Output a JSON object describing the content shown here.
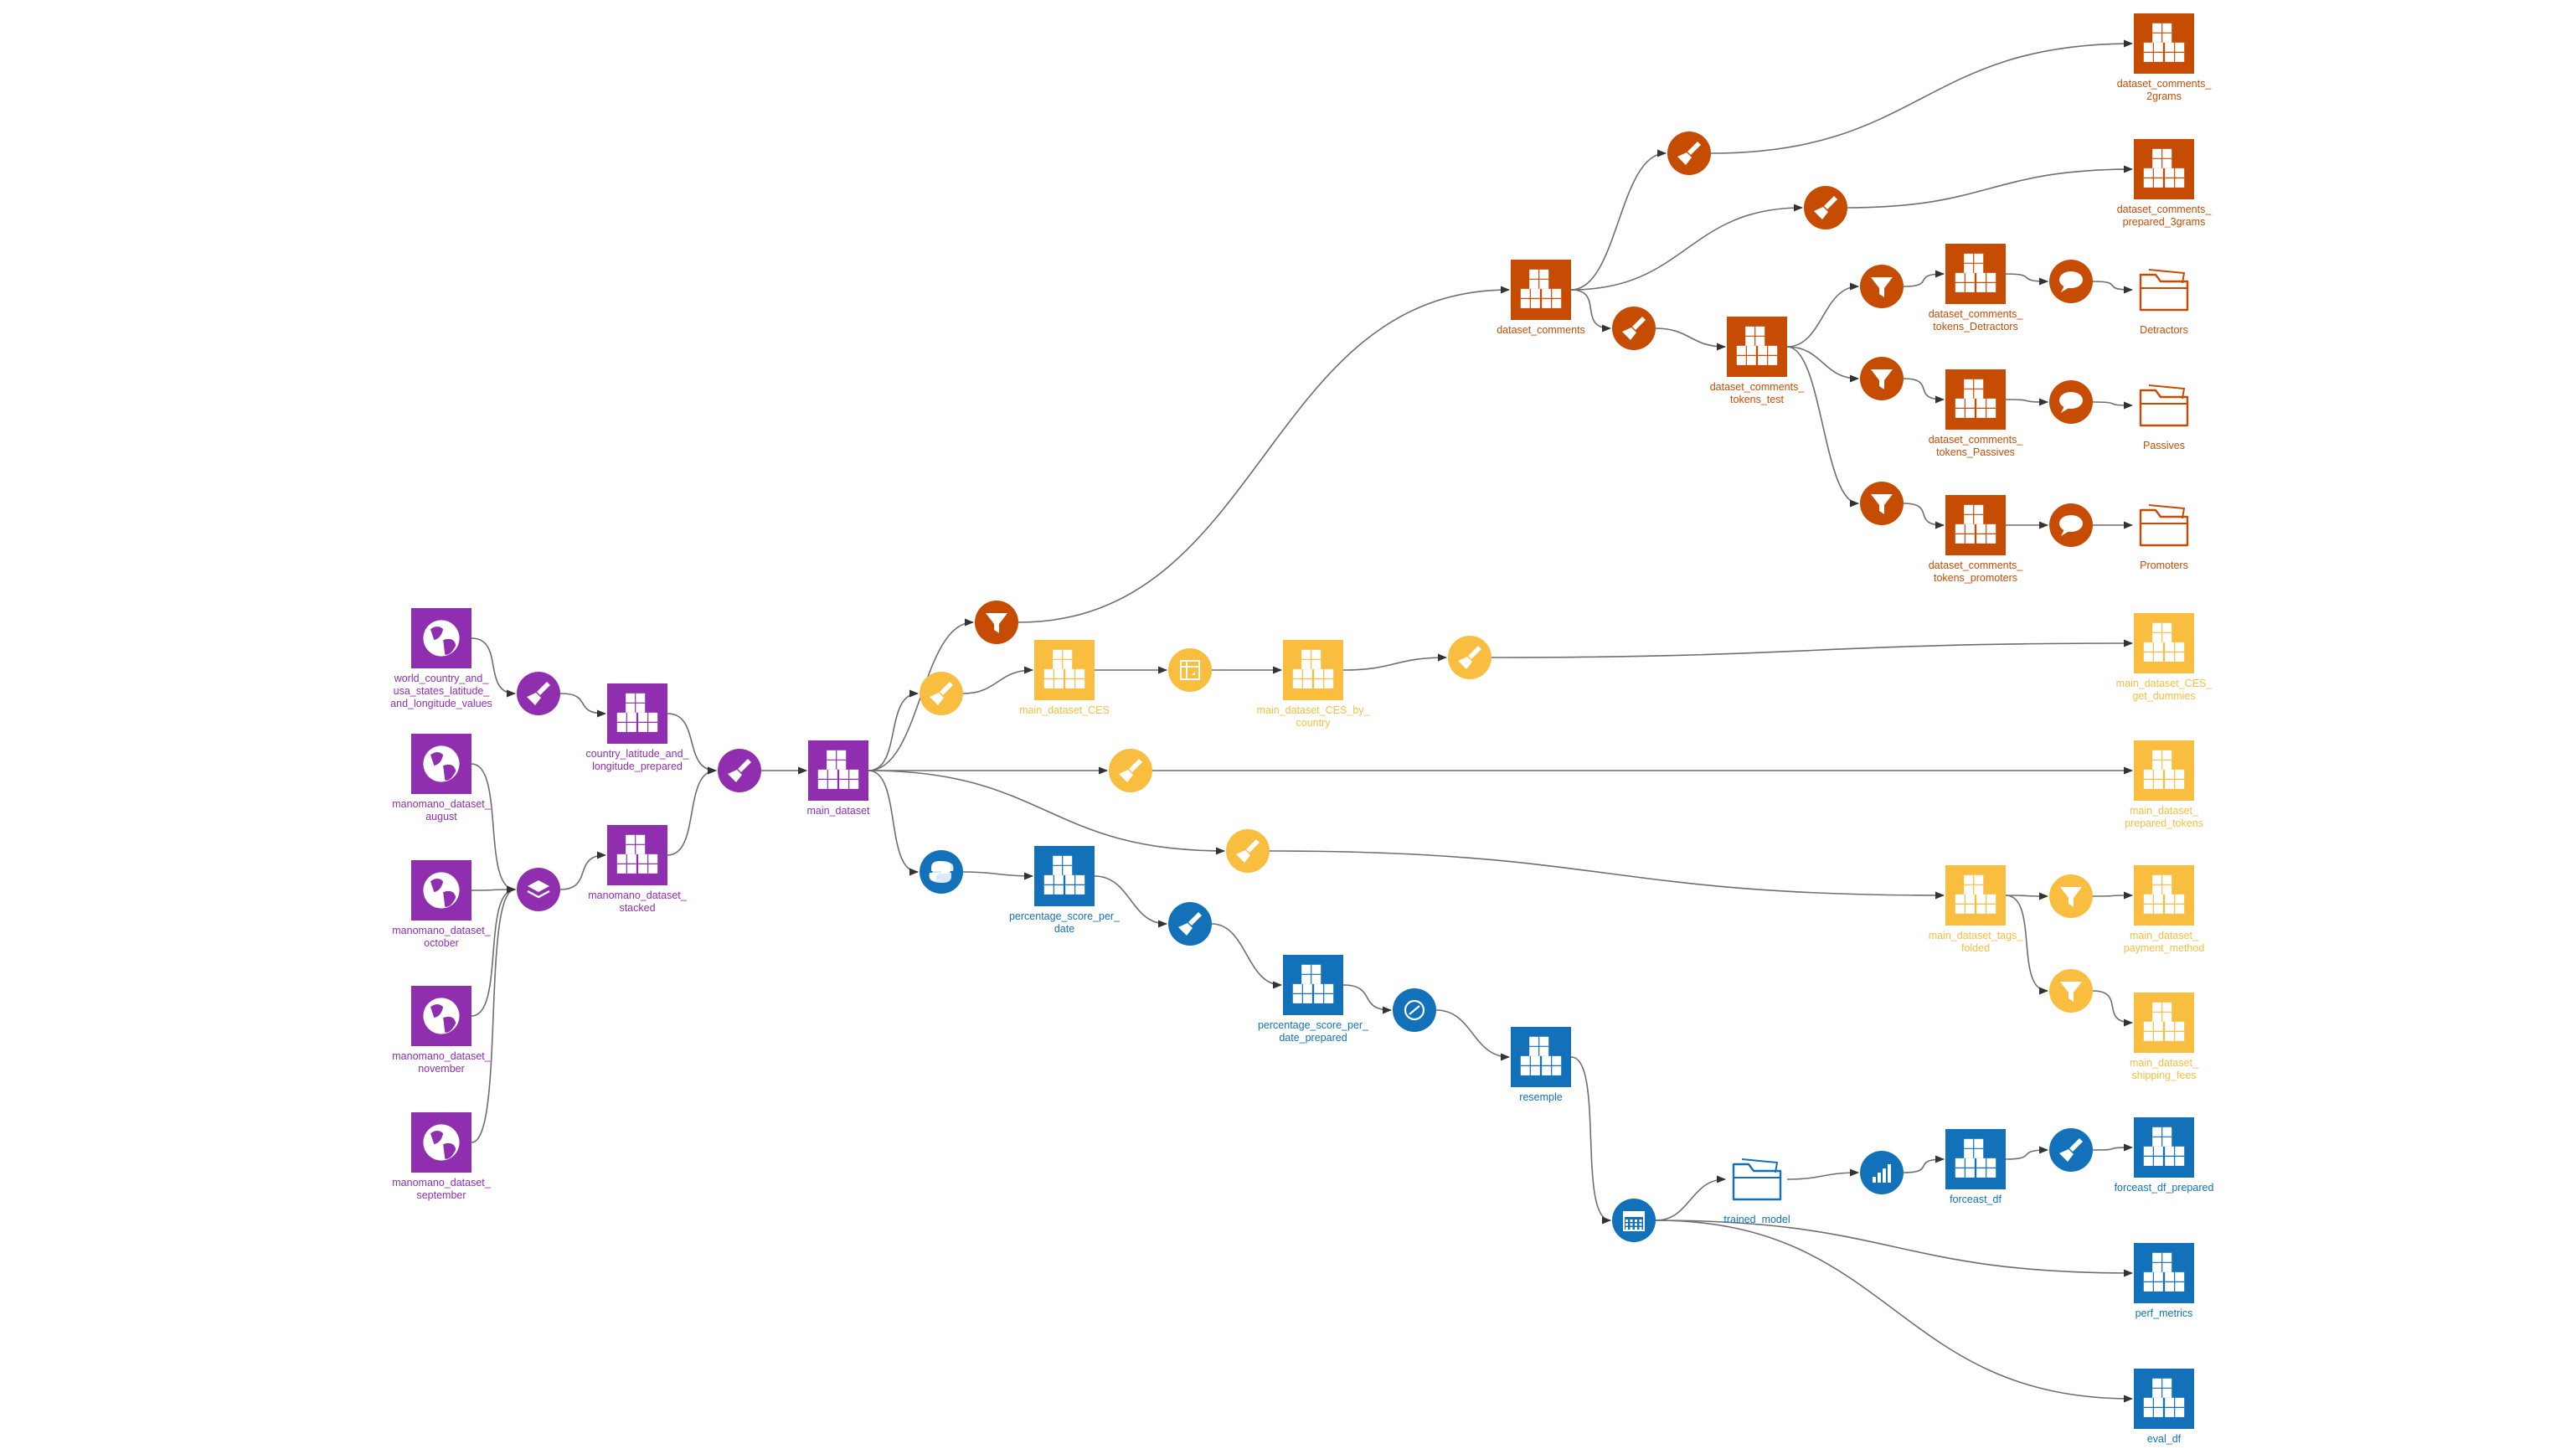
{
  "colors": {
    "purple": "#8F2FAF",
    "orange": "#C64C04",
    "yellow": "#F9BE40",
    "blue": "#1271B9",
    "edge": "#6E6E6E"
  },
  "nodes": [
    {
      "id": "world",
      "kind": "dataset",
      "icon": "globe-icon",
      "color": "purple",
      "label": [
        "world_country_and_",
        "usa_states_latitude_",
        "and_longitude_values"
      ]
    },
    {
      "id": "aug",
      "kind": "dataset",
      "icon": "globe-icon",
      "color": "purple",
      "label": [
        "manomano_dataset_",
        "august"
      ]
    },
    {
      "id": "oct",
      "kind": "dataset",
      "icon": "globe-icon",
      "color": "purple",
      "label": [
        "manomano_dataset_",
        "october"
      ]
    },
    {
      "id": "nov",
      "kind": "dataset",
      "icon": "globe-icon",
      "color": "purple",
      "label": [
        "manomano_dataset_",
        "november"
      ]
    },
    {
      "id": "sep",
      "kind": "dataset",
      "icon": "globe-icon",
      "color": "purple",
      "label": [
        "manomano_dataset_",
        "september"
      ]
    },
    {
      "id": "r_prep1",
      "kind": "recipe",
      "icon": "brush-icon",
      "color": "purple",
      "label": []
    },
    {
      "id": "r_stack",
      "kind": "recipe",
      "icon": "stack-icon",
      "color": "purple",
      "label": []
    },
    {
      "id": "clat",
      "kind": "dataset",
      "icon": "cubes-icon",
      "color": "purple",
      "label": [
        "country_latitude_and_",
        "longitude_prepared"
      ]
    },
    {
      "id": "stacked",
      "kind": "dataset",
      "icon": "cubes-icon",
      "color": "purple",
      "label": [
        "manomano_dataset_",
        "stacked"
      ]
    },
    {
      "id": "r_prep2",
      "kind": "recipe",
      "icon": "brush-icon",
      "color": "purple",
      "label": []
    },
    {
      "id": "main",
      "kind": "dataset",
      "icon": "cubes-icon",
      "color": "purple",
      "label": [
        "main_dataset"
      ]
    },
    {
      "id": "r_filter_top",
      "kind": "recipe",
      "icon": "filter-icon",
      "color": "orange",
      "label": []
    },
    {
      "id": "comments",
      "kind": "dataset",
      "icon": "cubes-icon",
      "color": "orange",
      "label": [
        "dataset_comments"
      ]
    },
    {
      "id": "r_prep_2g",
      "kind": "recipe",
      "icon": "brush-icon",
      "color": "orange",
      "label": []
    },
    {
      "id": "r_prep_3g",
      "kind": "recipe",
      "icon": "brush-icon",
      "color": "orange",
      "label": []
    },
    {
      "id": "r_prep_tok",
      "kind": "recipe",
      "icon": "brush-icon",
      "color": "orange",
      "label": []
    },
    {
      "id": "c2g",
      "kind": "dataset",
      "icon": "cubes-icon",
      "color": "orange",
      "label": [
        "dataset_comments_",
        "2grams"
      ]
    },
    {
      "id": "c3g",
      "kind": "dataset",
      "icon": "cubes-icon",
      "color": "orange",
      "label": [
        "dataset_comments_",
        "prepared_3grams"
      ]
    },
    {
      "id": "tokens_test",
      "kind": "dataset",
      "icon": "cubes-icon",
      "color": "orange",
      "label": [
        "dataset_comments_",
        "tokens_test"
      ]
    },
    {
      "id": "r_f_det",
      "kind": "recipe",
      "icon": "filter-icon",
      "color": "orange",
      "label": []
    },
    {
      "id": "r_f_pas",
      "kind": "recipe",
      "icon": "filter-icon",
      "color": "orange",
      "label": []
    },
    {
      "id": "r_f_pro",
      "kind": "recipe",
      "icon": "filter-icon",
      "color": "orange",
      "label": []
    },
    {
      "id": "tok_det",
      "kind": "dataset",
      "icon": "cubes-icon",
      "color": "orange",
      "label": [
        "dataset_comments_",
        "tokens_Detractors"
      ]
    },
    {
      "id": "tok_pas",
      "kind": "dataset",
      "icon": "cubes-icon",
      "color": "orange",
      "label": [
        "dataset_comments_",
        "tokens_Passives"
      ]
    },
    {
      "id": "tok_pro",
      "kind": "dataset",
      "icon": "cubes-icon",
      "color": "orange",
      "label": [
        "dataset_comments_",
        "tokens_promoters"
      ]
    },
    {
      "id": "r_s_det",
      "kind": "recipe",
      "icon": "speech-icon",
      "color": "orange",
      "label": []
    },
    {
      "id": "r_s_pas",
      "kind": "recipe",
      "icon": "speech-icon",
      "color": "orange",
      "label": []
    },
    {
      "id": "r_s_pro",
      "kind": "recipe",
      "icon": "speech-icon",
      "color": "orange",
      "label": []
    },
    {
      "id": "f_det",
      "kind": "folder",
      "icon": "folder-icon",
      "color": "orange",
      "label": [
        "Detractors"
      ]
    },
    {
      "id": "f_pas",
      "kind": "folder",
      "icon": "folder-icon",
      "color": "orange",
      "label": [
        "Passives"
      ]
    },
    {
      "id": "f_pro",
      "kind": "folder",
      "icon": "folder-icon",
      "color": "orange",
      "label": [
        "Promoters"
      ]
    },
    {
      "id": "r_prep_ces",
      "kind": "recipe",
      "icon": "brush-icon",
      "color": "yellow",
      "label": []
    },
    {
      "id": "ces",
      "kind": "dataset",
      "icon": "cubes-icon",
      "color": "yellow",
      "label": [
        "main_dataset_CES"
      ]
    },
    {
      "id": "r_pivot",
      "kind": "recipe",
      "icon": "pivot-icon",
      "color": "yellow",
      "label": []
    },
    {
      "id": "ces_country",
      "kind": "dataset",
      "icon": "cubes-icon",
      "color": "yellow",
      "label": [
        "main_dataset_CES_by_",
        "country"
      ]
    },
    {
      "id": "r_prep_dum",
      "kind": "recipe",
      "icon": "brush-icon",
      "color": "yellow",
      "label": []
    },
    {
      "id": "ces_dummies",
      "kind": "dataset",
      "icon": "cubes-icon",
      "color": "yellow",
      "label": [
        "main_dataset_CES_",
        "get_dummies"
      ]
    },
    {
      "id": "r_prep_tokens",
      "kind": "recipe",
      "icon": "brush-icon",
      "color": "yellow",
      "label": []
    },
    {
      "id": "prep_tokens",
      "kind": "dataset",
      "icon": "cubes-icon",
      "color": "yellow",
      "label": [
        "main_dataset_",
        "prepared_tokens"
      ]
    },
    {
      "id": "r_prep_tags",
      "kind": "recipe",
      "icon": "brush-icon",
      "color": "yellow",
      "label": []
    },
    {
      "id": "tags",
      "kind": "dataset",
      "icon": "cubes-icon",
      "color": "yellow",
      "label": [
        "main_dataset_tags_",
        "folded"
      ]
    },
    {
      "id": "r_f_pay",
      "kind": "recipe",
      "icon": "filter-icon",
      "color": "yellow",
      "label": []
    },
    {
      "id": "r_f_ship",
      "kind": "recipe",
      "icon": "filter-icon",
      "color": "yellow",
      "label": []
    },
    {
      "id": "payment",
      "kind": "dataset",
      "icon": "cubes-icon",
      "color": "yellow",
      "label": [
        "main_dataset_",
        "payment_method"
      ]
    },
    {
      "id": "shipping",
      "kind": "dataset",
      "icon": "cubes-icon",
      "color": "yellow",
      "label": [
        "main_dataset_",
        "shipping_fees"
      ]
    },
    {
      "id": "r_python",
      "kind": "recipe",
      "icon": "python-icon",
      "color": "blue",
      "label": []
    },
    {
      "id": "pct",
      "kind": "dataset",
      "icon": "cubes-icon",
      "color": "blue",
      "label": [
        "percentage_score_per_",
        "date"
      ]
    },
    {
      "id": "r_prep_pct",
      "kind": "recipe",
      "icon": "brush-icon",
      "color": "blue",
      "label": []
    },
    {
      "id": "pct_prep",
      "kind": "dataset",
      "icon": "cubes-icon",
      "color": "blue",
      "label": [
        "percentage_score_per_",
        "date_prepared"
      ]
    },
    {
      "id": "r_resample",
      "kind": "recipe",
      "icon": "resample-icon",
      "color": "blue",
      "label": []
    },
    {
      "id": "resemple",
      "kind": "dataset",
      "icon": "cubes-icon",
      "color": "blue",
      "label": [
        "resemple"
      ]
    },
    {
      "id": "r_forecast",
      "kind": "recipe",
      "icon": "calendar-icon",
      "color": "blue",
      "label": []
    },
    {
      "id": "model",
      "kind": "folder",
      "icon": "folder-icon",
      "color": "blue",
      "label": [
        "trained_model"
      ]
    },
    {
      "id": "r_predict",
      "kind": "recipe",
      "icon": "bars-icon",
      "color": "blue",
      "label": []
    },
    {
      "id": "forecast",
      "kind": "dataset",
      "icon": "cubes-icon",
      "color": "blue",
      "label": [
        "forceast_df"
      ]
    },
    {
      "id": "r_prep_fc",
      "kind": "recipe",
      "icon": "brush-icon",
      "color": "blue",
      "label": []
    },
    {
      "id": "forecast_prep",
      "kind": "dataset",
      "icon": "cubes-icon",
      "color": "blue",
      "label": [
        "forceast_df_prepared"
      ]
    },
    {
      "id": "perf",
      "kind": "dataset",
      "icon": "cubes-icon",
      "color": "blue",
      "label": [
        "perf_metrics"
      ]
    },
    {
      "id": "eval",
      "kind": "dataset",
      "icon": "cubes-icon",
      "color": "blue",
      "label": [
        "eval_df"
      ]
    }
  ],
  "edges": [
    [
      "world",
      "r_prep1"
    ],
    [
      "r_prep1",
      "clat"
    ],
    [
      "clat",
      "r_prep2"
    ],
    [
      "aug",
      "r_stack"
    ],
    [
      "oct",
      "r_stack"
    ],
    [
      "nov",
      "r_stack"
    ],
    [
      "sep",
      "r_stack"
    ],
    [
      "r_stack",
      "stacked"
    ],
    [
      "stacked",
      "r_prep2"
    ],
    [
      "r_prep2",
      "main"
    ],
    [
      "main",
      "r_filter_top"
    ],
    [
      "r_filter_top",
      "comments"
    ],
    [
      "comments",
      "r_prep_2g"
    ],
    [
      "r_prep_2g",
      "c2g"
    ],
    [
      "comments",
      "r_prep_3g"
    ],
    [
      "r_prep_3g",
      "c3g"
    ],
    [
      "comments",
      "r_prep_tok"
    ],
    [
      "r_prep_tok",
      "tokens_test"
    ],
    [
      "tokens_test",
      "r_f_det"
    ],
    [
      "tokens_test",
      "r_f_pas"
    ],
    [
      "tokens_test",
      "r_f_pro"
    ],
    [
      "r_f_det",
      "tok_det"
    ],
    [
      "r_f_pas",
      "tok_pas"
    ],
    [
      "r_f_pro",
      "tok_pro"
    ],
    [
      "tok_det",
      "r_s_det"
    ],
    [
      "tok_pas",
      "r_s_pas"
    ],
    [
      "tok_pro",
      "r_s_pro"
    ],
    [
      "r_s_det",
      "f_det"
    ],
    [
      "r_s_pas",
      "f_pas"
    ],
    [
      "r_s_pro",
      "f_pro"
    ],
    [
      "main",
      "r_prep_ces"
    ],
    [
      "r_prep_ces",
      "ces"
    ],
    [
      "ces",
      "r_pivot"
    ],
    [
      "r_pivot",
      "ces_country"
    ],
    [
      "ces_country",
      "r_prep_dum"
    ],
    [
      "r_prep_dum",
      "ces_dummies"
    ],
    [
      "main",
      "r_prep_tokens"
    ],
    [
      "r_prep_tokens",
      "prep_tokens"
    ],
    [
      "main",
      "r_prep_tags"
    ],
    [
      "r_prep_tags",
      "tags"
    ],
    [
      "tags",
      "r_f_pay"
    ],
    [
      "tags",
      "r_f_ship"
    ],
    [
      "r_f_pay",
      "payment"
    ],
    [
      "r_f_ship",
      "shipping"
    ],
    [
      "main",
      "r_python"
    ],
    [
      "r_python",
      "pct"
    ],
    [
      "pct",
      "r_prep_pct"
    ],
    [
      "r_prep_pct",
      "pct_prep"
    ],
    [
      "pct_prep",
      "r_resample"
    ],
    [
      "r_resample",
      "resemple"
    ],
    [
      "resemple",
      "r_forecast"
    ],
    [
      "r_forecast",
      "model"
    ],
    [
      "model",
      "r_predict"
    ],
    [
      "r_predict",
      "forecast"
    ],
    [
      "forecast",
      "r_prep_fc"
    ],
    [
      "r_prep_fc",
      "forecast_prep"
    ],
    [
      "r_forecast",
      "perf"
    ],
    [
      "r_forecast",
      "eval"
    ]
  ]
}
